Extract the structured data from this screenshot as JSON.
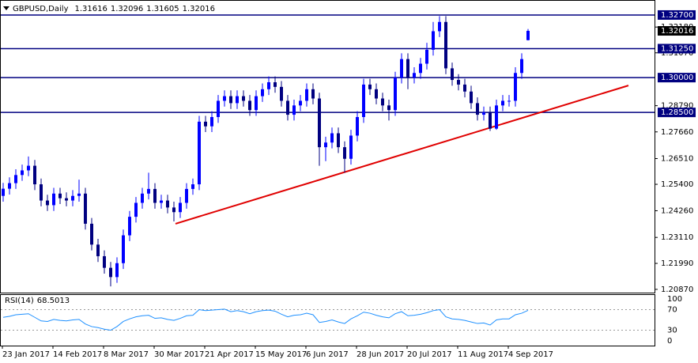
{
  "chart_data": {
    "type": "candlestick",
    "symbol": "GBPUSD,Daily",
    "up_color": "#0000ff",
    "down_color": "#000080",
    "level_color": "#000080",
    "trendline_color": "#e00000",
    "ylim": [
      1.2073,
      1.3321
    ],
    "yticks": [
      {
        "value": 1.2087,
        "label": "1.20870"
      },
      {
        "value": 1.2199,
        "label": "1.21990"
      },
      {
        "value": 1.2311,
        "label": "1.23110"
      },
      {
        "value": 1.2426,
        "label": "1.24260"
      },
      {
        "value": 1.254,
        "label": "1.25400"
      },
      {
        "value": 1.2651,
        "label": "1.26510"
      },
      {
        "value": 1.2766,
        "label": "1.27660"
      },
      {
        "value": 1.2879,
        "label": "1.28790"
      },
      {
        "value": 1.3107,
        "label": "1.31070"
      },
      {
        "value": 1.3218,
        "label": "1.32180"
      }
    ],
    "levels": [
      {
        "value": 1.327,
        "label": "1.32700"
      },
      {
        "value": 1.3125,
        "label": "1.31250"
      },
      {
        "value": 1.3,
        "label": "1.30000"
      },
      {
        "value": 1.285,
        "label": "1.28500"
      }
    ],
    "trendline": [
      1.237,
      1.2966
    ],
    "x_labels": [
      "23 Jan 2017",
      "14 Feb 2017",
      "8 Mar 2017",
      "30 Mar 2017",
      "21 Apr 2017",
      "15 May 2017",
      "6 Jun 2017",
      "28 Jun 2017",
      "20 Jul 2017",
      "11 Aug 2017",
      "4 Sep 2017"
    ],
    "open": [
      1.249,
      1.2521,
      1.2545,
      1.258,
      1.26,
      1.262,
      1.254,
      1.247,
      1.245,
      1.25,
      1.248,
      1.247,
      1.249,
      1.25,
      1.237,
      1.228,
      1.223,
      1.218,
      1.214,
      1.22,
      1.232,
      1.24,
      1.246,
      1.25,
      1.252,
      1.246,
      1.247,
      1.244,
      1.242,
      1.246,
      1.252,
      1.254,
      1.281,
      1.279,
      1.283,
      1.29,
      1.292,
      1.289,
      1.292,
      1.29,
      1.286,
      1.292,
      1.295,
      1.298,
      1.296,
      1.29,
      1.284,
      1.288,
      1.29,
      1.295,
      1.291,
      1.27,
      1.272,
      1.276,
      1.27,
      1.265,
      1.275,
      1.283,
      1.297,
      1.295,
      1.291,
      1.288,
      1.286,
      1.3,
      1.308,
      1.3,
      1.302,
      1.306,
      1.312,
      1.32,
      1.324,
      1.304,
      1.299,
      1.297,
      1.294,
      1.289,
      1.284,
      1.285,
      1.278,
      1.288,
      1.29,
      1.29,
      1.302,
      1.31616
    ],
    "high": [
      1.2546,
      1.257,
      1.2605,
      1.2625,
      1.266,
      1.2645,
      1.2565,
      1.2495,
      1.2525,
      1.2525,
      1.2505,
      1.2515,
      1.256,
      1.2525,
      1.2395,
      1.2305,
      1.2255,
      1.2205,
      1.2225,
      1.2345,
      1.2425,
      1.2485,
      1.2525,
      1.259,
      1.2545,
      1.2495,
      1.2495,
      1.2465,
      1.2485,
      1.2545,
      1.2565,
      1.2835,
      1.2835,
      1.2855,
      1.2925,
      1.2945,
      1.2945,
      1.2945,
      1.2945,
      1.2925,
      1.2945,
      1.2975,
      1.3005,
      1.3005,
      1.2985,
      1.2925,
      1.2905,
      1.2925,
      1.2975,
      1.2975,
      1.2935,
      1.2745,
      1.2785,
      1.2785,
      1.2725,
      1.2775,
      1.2855,
      1.2995,
      1.2995,
      1.2975,
      1.2935,
      1.2905,
      1.3025,
      1.3105,
      1.3105,
      1.3045,
      1.3085,
      1.315,
      1.324,
      1.3265,
      1.3265,
      1.3065,
      1.3015,
      1.2995,
      1.2965,
      1.2915,
      1.2875,
      1.2875,
      1.2905,
      1.2925,
      1.2925,
      1.3045,
      1.3105,
      1.32096
    ],
    "low": [
      1.2465,
      1.2496,
      1.252,
      1.2555,
      1.2575,
      1.2515,
      1.2445,
      1.2425,
      1.2425,
      1.2455,
      1.2445,
      1.2445,
      1.2465,
      1.2345,
      1.2255,
      1.2205,
      1.2155,
      1.21,
      1.2115,
      1.2175,
      1.2295,
      1.2375,
      1.2435,
      1.2475,
      1.2435,
      1.2435,
      1.2415,
      1.238,
      1.2395,
      1.2435,
      1.2495,
      1.2515,
      1.2765,
      1.2765,
      1.2805,
      1.2875,
      1.2865,
      1.2865,
      1.2875,
      1.2835,
      1.2835,
      1.2895,
      1.2925,
      1.2935,
      1.2875,
      1.2815,
      1.2815,
      1.2855,
      1.2875,
      1.2885,
      1.262,
      1.264,
      1.2695,
      1.2675,
      1.259,
      1.2625,
      1.2725,
      1.2805,
      1.2925,
      1.2885,
      1.2855,
      1.2815,
      1.2835,
      1.2975,
      1.295,
      1.2975,
      1.2995,
      1.3035,
      1.3095,
      1.3175,
      1.3015,
      1.2965,
      1.2945,
      1.2915,
      1.2865,
      1.2815,
      1.2815,
      1.277,
      1.2775,
      1.2855,
      1.2875,
      1.2875,
      1.2995,
      1.31605
    ],
    "close": [
      1.2521,
      1.2545,
      1.258,
      1.26,
      1.262,
      1.254,
      1.247,
      1.245,
      1.25,
      1.248,
      1.247,
      1.249,
      1.25,
      1.237,
      1.228,
      1.223,
      1.218,
      1.214,
      1.22,
      1.232,
      1.24,
      1.246,
      1.25,
      1.252,
      1.246,
      1.247,
      1.244,
      1.242,
      1.246,
      1.252,
      1.254,
      1.281,
      1.279,
      1.283,
      1.29,
      1.292,
      1.289,
      1.292,
      1.29,
      1.286,
      1.292,
      1.295,
      1.298,
      1.296,
      1.29,
      1.284,
      1.288,
      1.29,
      1.295,
      1.291,
      1.27,
      1.272,
      1.276,
      1.27,
      1.265,
      1.275,
      1.283,
      1.297,
      1.295,
      1.291,
      1.288,
      1.286,
      1.3,
      1.308,
      1.3,
      1.302,
      1.306,
      1.312,
      1.32,
      1.324,
      1.304,
      1.299,
      1.297,
      1.294,
      1.289,
      1.284,
      1.285,
      1.278,
      1.288,
      1.29,
      1.29,
      1.302,
      1.308,
      1.32016
    ],
    "rsi": {
      "name": "RSI(14)",
      "color": "#1e90ff",
      "ylim": [
        0,
        100
      ],
      "yticks": [
        0,
        30,
        70,
        100
      ],
      "values": [
        55,
        57,
        60,
        61,
        62,
        55,
        48,
        47,
        51,
        49,
        48,
        50,
        51,
        42,
        37,
        35,
        32,
        30,
        37,
        47,
        52,
        56,
        58,
        59,
        53,
        54,
        51,
        49,
        53,
        58,
        59,
        70,
        68,
        69,
        70,
        71,
        66,
        68,
        66,
        62,
        66,
        68,
        69,
        67,
        61,
        56,
        59,
        60,
        63,
        60,
        45,
        47,
        50,
        46,
        43,
        52,
        58,
        65,
        63,
        59,
        56,
        54,
        62,
        66,
        58,
        59,
        61,
        64,
        68,
        70,
        56,
        52,
        51,
        49,
        46,
        43,
        44,
        40,
        50,
        52,
        52,
        60,
        63,
        68.5013
      ]
    }
  }
}
